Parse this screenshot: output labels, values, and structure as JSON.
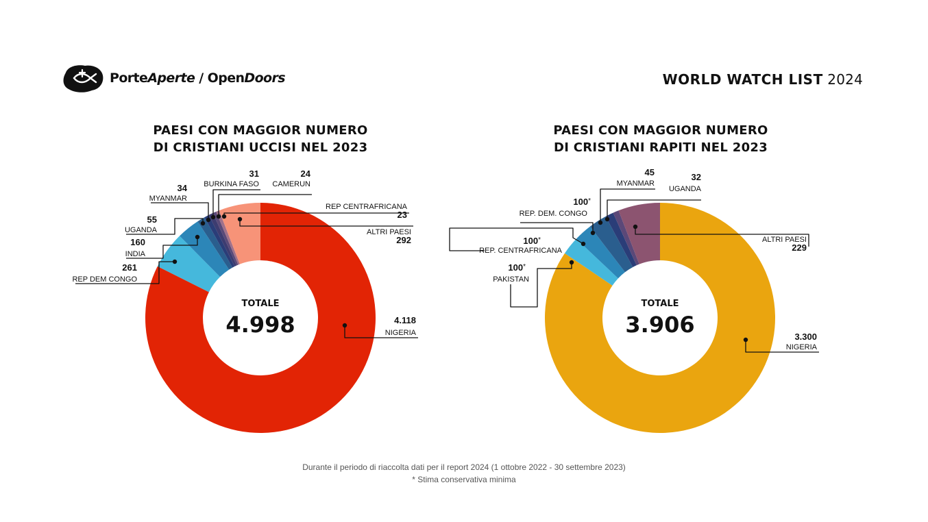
{
  "header": {
    "logo_text_porte": "Porte",
    "logo_text_aperte": "Aperte",
    "logo_text_sep": " / ",
    "logo_text_open": "Open",
    "logo_text_doors": "Doors",
    "wwl_bold": "WORLD WATCH LIST",
    "wwl_year": "2024"
  },
  "charts": {
    "left_title_line1": "PAESI CON MAGGIOR NUMERO",
    "left_title_line2": "DI CRISTIANI UCCISI NEL 2023",
    "right_title_line1": "PAESI CON MAGGIOR NUMERO",
    "right_title_line2": "DI CRISTIANI RAPITI NEL 2023"
  },
  "footer": {
    "line1": "Durante il periodo di riaccolta dati per il report 2024 (1 ottobre 2022 - 30 settembre 2023)",
    "line2": "* Stima conservativa minima"
  },
  "chart_data": [
    {
      "type": "pie",
      "title": "PAESI CON MAGGIOR NUMERO DI CRISTIANI UCCISI NEL 2023",
      "center_label": "TOTALE",
      "total_label": "4.998",
      "total": 4998,
      "categories": [
        "NIGERIA",
        "REP DEM CONGO",
        "INDIA",
        "UGANDA",
        "MYANMAR",
        "BURKINA FASO",
        "CAMERUN",
        "REP CENTRAFRICANA",
        "ALTRI PAESI"
      ],
      "values": [
        4118,
        261,
        160,
        55,
        34,
        31,
        24,
        23,
        292
      ],
      "value_labels": [
        "4.118",
        "261",
        "160",
        "55",
        "34",
        "31",
        "24",
        "23",
        "292"
      ],
      "colors": [
        "#e22405",
        "#45b8dc",
        "#2c86b8",
        "#2a5e8e",
        "#2a3d78",
        "#3d3c70",
        "#5a4a78",
        "#a0718a",
        "#f79378"
      ]
    },
    {
      "type": "pie",
      "title": "PAESI CON MAGGIOR NUMERO DI CRISTIANI RAPITI NEL 2023",
      "center_label": "TOTALE",
      "total_label": "3.906",
      "total": 3906,
      "categories": [
        "NIGERIA",
        "PAKISTAN",
        "REP. CENTRAFRICANA",
        "REP. DEM. CONGO",
        "MYANMAR",
        "UGANDA",
        "ALTRI PAESI"
      ],
      "values": [
        3300,
        100,
        100,
        100,
        45,
        32,
        229
      ],
      "value_labels": [
        "3.300",
        "100",
        "100",
        "100",
        "45",
        "32",
        "229"
      ],
      "estimate_marks": [
        "",
        "*",
        "*",
        "*",
        "",
        "",
        ""
      ],
      "colors": [
        "#eaa50f",
        "#45b8dc",
        "#2c86b8",
        "#2a5e8e",
        "#2a3d78",
        "#5b4878",
        "#8c5470"
      ]
    }
  ]
}
